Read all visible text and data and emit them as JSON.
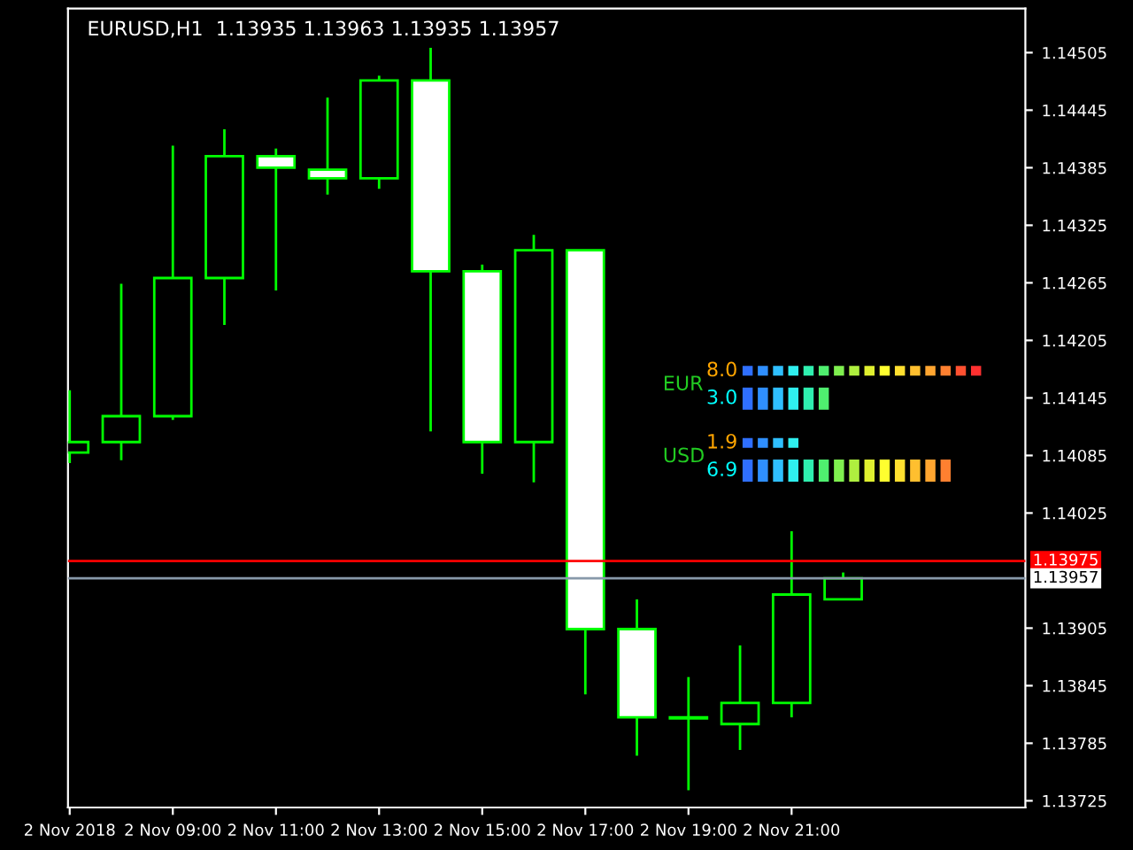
{
  "chart_data": [
    {
      "type": "candlestick",
      "title": "EURUSD,H1  1.13935 1.13963 1.13935 1.13957",
      "x": [
        "2018-11-02T07:00",
        "2018-11-02T08:00",
        "2018-11-02T09:00",
        "2018-11-02T10:00",
        "2018-11-02T11:00",
        "2018-11-02T12:00",
        "2018-11-02T13:00",
        "2018-11-02T14:00",
        "2018-11-02T15:00",
        "2018-11-02T16:00",
        "2018-11-02T17:00",
        "2018-11-02T18:00",
        "2018-11-02T19:00",
        "2018-11-02T20:00",
        "2018-11-02T21:00",
        "2018-11-02T22:00"
      ],
      "ohlc": [
        [
          1.14088,
          1.14153,
          1.14077,
          1.14099
        ],
        [
          1.14099,
          1.14264,
          1.1408,
          1.14126
        ],
        [
          1.14126,
          1.14408,
          1.14122,
          1.1427
        ],
        [
          1.1427,
          1.14425,
          1.14221,
          1.14397
        ],
        [
          1.14397,
          1.14405,
          1.14257,
          1.14385
        ],
        [
          1.14383,
          1.14458,
          1.14357,
          1.14374
        ],
        [
          1.14374,
          1.14481,
          1.14363,
          1.14476
        ],
        [
          1.14476,
          1.1451,
          1.1411,
          1.14277
        ],
        [
          1.14277,
          1.14284,
          1.14066,
          1.14099
        ],
        [
          1.14099,
          1.14315,
          1.14057,
          1.14299
        ],
        [
          1.14299,
          1.14299,
          1.13836,
          1.13904
        ],
        [
          1.13904,
          1.13935,
          1.13772,
          1.13812
        ],
        [
          1.13812,
          1.13854,
          1.13736,
          1.13811
        ],
        [
          1.13805,
          1.13887,
          1.13778,
          1.13827
        ],
        [
          1.13827,
          1.14006,
          1.13812,
          1.1394
        ],
        [
          1.13935,
          1.13963,
          1.13935,
          1.13957
        ]
      ],
      "color": "#00ff00",
      "colors": [
        "#000000",
        "#000000",
        "#000000",
        "#000000",
        "#ffffff",
        "#ffffff",
        "#000000",
        "#ffffff",
        "#ffffff",
        "#000000",
        "#ffffff",
        "#ffffff",
        "#ffffff",
        "#000000",
        "#000000",
        "#000000"
      ],
      "xlim": [
        "2018-11-02T06:58",
        "2018-11-03T01:32"
      ],
      "xticks": [
        {
          "value": "2018-11-02T07:00",
          "label": "2 Nov 2018"
        },
        {
          "value": "2018-11-02T09:00",
          "label": "2 Nov 09:00"
        },
        {
          "value": "2018-11-02T11:00",
          "label": "2 Nov 11:00"
        },
        {
          "value": "2018-11-02T13:00",
          "label": "2 Nov 13:00"
        },
        {
          "value": "2018-11-02T15:00",
          "label": "2 Nov 15:00"
        },
        {
          "value": "2018-11-02T17:00",
          "label": "2 Nov 17:00"
        },
        {
          "value": "2018-11-02T19:00",
          "label": "2 Nov 19:00"
        },
        {
          "value": "2018-11-02T21:00",
          "label": "2 Nov 21:00"
        }
      ],
      "ylim": [
        1.13718,
        1.14551
      ],
      "yticks": [
        1.13725,
        1.13785,
        1.13845,
        1.13905,
        1.14025,
        1.14085,
        1.14145,
        1.14205,
        1.14265,
        1.14325,
        1.14385,
        1.14445,
        1.14505
      ],
      "ref_lines": [
        {
          "axis": "y",
          "value": 1.13975,
          "label": "1.13975",
          "color": "#ff0000"
        },
        {
          "axis": "y",
          "value": 1.13957,
          "label": "1.13957",
          "color": "#8899aa"
        }
      ],
      "grid": false
    },
    {
      "type": "other",
      "categories": [
        "EUR",
        "USD"
      ],
      "series": [
        {
          "color": "#ffa500",
          "values": [
            8.0,
            1.9
          ],
          "value_labels": [
            "8.0",
            "1.9"
          ]
        },
        {
          "color": "#00ffff",
          "values": [
            3.0,
            6.9
          ],
          "value_labels": [
            "3.0",
            "6.9"
          ]
        }
      ]
    }
  ]
}
